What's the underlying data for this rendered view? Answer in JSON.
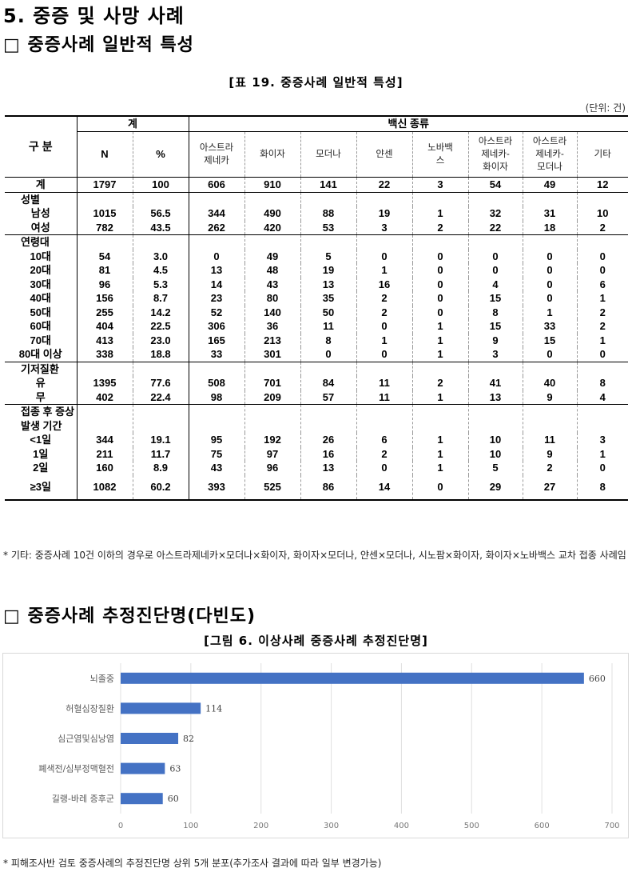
{
  "heading1": "5. 중증 및 사망 사례",
  "heading2": "□ 중증사례 일반적 특성",
  "table_caption": "[표 19. 중증사례 일반적 특성]",
  "unit": "(단위: 건)",
  "table": {
    "h_gubun": "구 분",
    "h_total": "계",
    "h_vaccine": "백신 종류",
    "h_n": "N",
    "h_pct": "%",
    "cols": [
      "아스트라\n제네카",
      "화이자",
      "모더나",
      "얀센",
      "노바백\n스",
      "아스트라\n제네카-\n화이자",
      "아스트라\n제네카-\n모더나",
      "기타"
    ],
    "rows": [
      {
        "label": "계",
        "vals": [
          "1797",
          "100",
          "606",
          "910",
          "141",
          "22",
          "3",
          "54",
          "49",
          "12"
        ]
      },
      {
        "label": "성별",
        "section": true
      },
      {
        "label": "남성",
        "vals": [
          "1015",
          "56.5",
          "344",
          "490",
          "88",
          "19",
          "1",
          "32",
          "31",
          "10"
        ]
      },
      {
        "label": "여성",
        "vals": [
          "782",
          "43.5",
          "262",
          "420",
          "53",
          "3",
          "2",
          "22",
          "18",
          "2"
        ]
      },
      {
        "label": "연령대",
        "section": true
      },
      {
        "label": "10대",
        "vals": [
          "54",
          "3.0",
          "0",
          "49",
          "5",
          "0",
          "0",
          "0",
          "0",
          "0"
        ]
      },
      {
        "label": "20대",
        "vals": [
          "81",
          "4.5",
          "13",
          "48",
          "19",
          "1",
          "0",
          "0",
          "0",
          "0"
        ]
      },
      {
        "label": "30대",
        "vals": [
          "96",
          "5.3",
          "14",
          "43",
          "13",
          "16",
          "0",
          "4",
          "0",
          "6"
        ]
      },
      {
        "label": "40대",
        "vals": [
          "156",
          "8.7",
          "23",
          "80",
          "35",
          "2",
          "0",
          "15",
          "0",
          "1"
        ]
      },
      {
        "label": "50대",
        "vals": [
          "255",
          "14.2",
          "52",
          "140",
          "50",
          "2",
          "0",
          "8",
          "1",
          "2"
        ]
      },
      {
        "label": "60대",
        "vals": [
          "404",
          "22.5",
          "306",
          "36",
          "11",
          "0",
          "1",
          "15",
          "33",
          "2"
        ]
      },
      {
        "label": "70대",
        "vals": [
          "413",
          "23.0",
          "165",
          "213",
          "8",
          "1",
          "1",
          "9",
          "15",
          "1"
        ]
      },
      {
        "label": "80대 이상",
        "vals": [
          "338",
          "18.8",
          "33",
          "301",
          "0",
          "0",
          "1",
          "3",
          "0",
          "0"
        ]
      },
      {
        "label": "기저질환",
        "section": true
      },
      {
        "label": "유",
        "vals": [
          "1395",
          "77.6",
          "508",
          "701",
          "84",
          "11",
          "2",
          "41",
          "40",
          "8"
        ]
      },
      {
        "label": "무",
        "vals": [
          "402",
          "22.4",
          "98",
          "209",
          "57",
          "11",
          "1",
          "13",
          "9",
          "4"
        ]
      },
      {
        "label": "접종 후 증상발생 기간",
        "section": true
      },
      {
        "label": "<1일",
        "vals": [
          "344",
          "19.1",
          "95",
          "192",
          "26",
          "6",
          "1",
          "10",
          "11",
          "3"
        ]
      },
      {
        "label": "1일",
        "vals": [
          "211",
          "11.7",
          "75",
          "97",
          "16",
          "2",
          "1",
          "10",
          "9",
          "1"
        ]
      },
      {
        "label": "2일",
        "vals": [
          "160",
          "8.9",
          "43",
          "96",
          "13",
          "0",
          "1",
          "5",
          "2",
          "0"
        ]
      },
      {
        "label": "≥3일",
        "vals": [
          "1082",
          "60.2",
          "393",
          "525",
          "86",
          "14",
          "0",
          "29",
          "27",
          "8"
        ]
      }
    ]
  },
  "note1": "* 기타: 중증사례 10건 이하의 경우로 아스트라제네카×모더나×화이자, 화이자×모더나, 얀센×모더나, 시노팜×화이자, 화이자×노바백스 교차 접종 사례임",
  "heading3": "□ 중증사례 추정진단명(다빈도)",
  "figure_caption": "[그림 6. 이상사례 중증사례 추정진단명]",
  "chart_data": {
    "type": "bar",
    "orientation": "horizontal",
    "categories": [
      "뇌졸중",
      "허혈심장질환",
      "심근염및심낭염",
      "폐색전/심부정맥혈전",
      "길랭-바레 증후군"
    ],
    "values": [
      660,
      114,
      82,
      63,
      60
    ],
    "xlim": [
      0,
      700
    ],
    "xticks": [
      "0",
      "100",
      "200",
      "300",
      "400",
      "500",
      "600",
      "700"
    ],
    "bar_color": "#4472c4",
    "grid": true
  },
  "note2": "* 피해조사반 검토 중증사례의 추정진단명 상위 5개 분포(추가조사 결과에 따라 일부 변경가능)"
}
